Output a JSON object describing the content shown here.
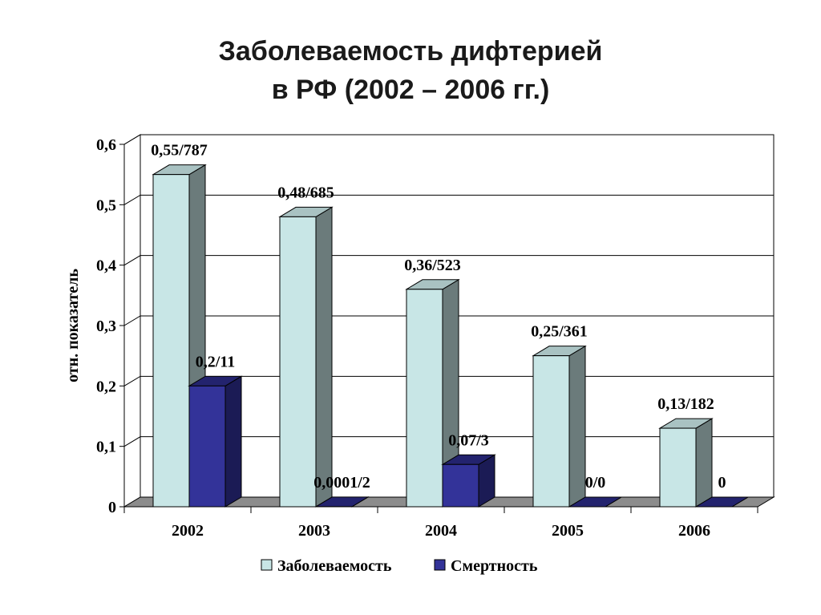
{
  "title_line1": "Заболеваемость дифтерией",
  "title_line2": "в РФ (2002 – 2006 гг.)",
  "chart_data": {
    "type": "bar",
    "categories": [
      "2002",
      "2003",
      "2004",
      "2005",
      "2006"
    ],
    "series": [
      {
        "name": "Заболеваемость",
        "values": [
          0.55,
          0.48,
          0.36,
          0.25,
          0.13
        ],
        "labels": [
          "0,55/787",
          "0,48/685",
          "0,36/523",
          "0,25/361",
          "0,13/182"
        ],
        "color": "#c8e6e6"
      },
      {
        "name": "Смертность",
        "values": [
          0.2,
          0.0001,
          0.07,
          0,
          0
        ],
        "labels": [
          "0,2/11",
          "0,0001/2",
          "0,07/3",
          "0/0",
          "0"
        ],
        "color": "#333399"
      }
    ],
    "ylabel": "отн. показатель",
    "yticks": [
      "0",
      "0,1",
      "0,2",
      "0,3",
      "0,4",
      "0,5",
      "0,6"
    ],
    "ylim": [
      0,
      0.6
    ],
    "grid": true,
    "legend": "bottom"
  }
}
